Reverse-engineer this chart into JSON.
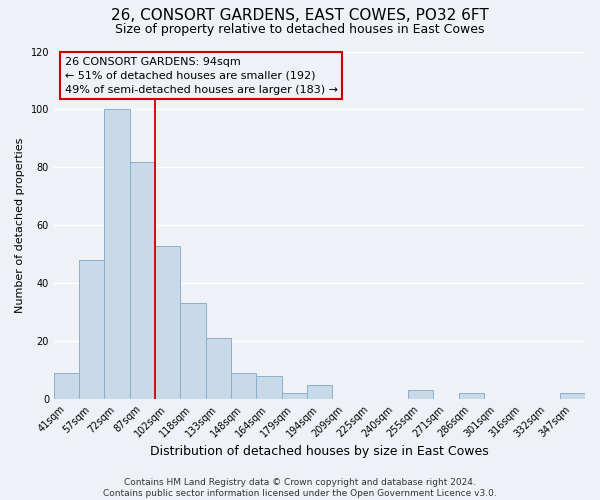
{
  "title": "26, CONSORT GARDENS, EAST COWES, PO32 6FT",
  "subtitle": "Size of property relative to detached houses in East Cowes",
  "xlabel": "Distribution of detached houses by size in East Cowes",
  "ylabel": "Number of detached properties",
  "bar_labels": [
    "41sqm",
    "57sqm",
    "72sqm",
    "87sqm",
    "102sqm",
    "118sqm",
    "133sqm",
    "148sqm",
    "164sqm",
    "179sqm",
    "194sqm",
    "209sqm",
    "225sqm",
    "240sqm",
    "255sqm",
    "271sqm",
    "286sqm",
    "301sqm",
    "316sqm",
    "332sqm",
    "347sqm"
  ],
  "bar_values": [
    9,
    48,
    100,
    82,
    53,
    33,
    21,
    9,
    8,
    2,
    5,
    0,
    0,
    0,
    3,
    0,
    2,
    0,
    0,
    0,
    2
  ],
  "bar_color": "#c8d9ea",
  "bar_edge_color": "#8ab0cc",
  "ylim": [
    0,
    120
  ],
  "yticks": [
    0,
    20,
    40,
    60,
    80,
    100,
    120
  ],
  "vline_color": "#cc0000",
  "vline_x": 3.5,
  "annotation_title": "26 CONSORT GARDENS: 94sqm",
  "annotation_line1": "← 51% of detached houses are smaller (192)",
  "annotation_line2": "49% of semi-detached houses are larger (183) →",
  "footer1": "Contains HM Land Registry data © Crown copyright and database right 2024.",
  "footer2": "Contains public sector information licensed under the Open Government Licence v3.0.",
  "background_color": "#eef2f7",
  "grid_color": "#ffffff",
  "title_fontsize": 11,
  "subtitle_fontsize": 9,
  "xlabel_fontsize": 9,
  "ylabel_fontsize": 8,
  "tick_fontsize": 7,
  "footer_fontsize": 6.5,
  "ann_fontsize": 8
}
